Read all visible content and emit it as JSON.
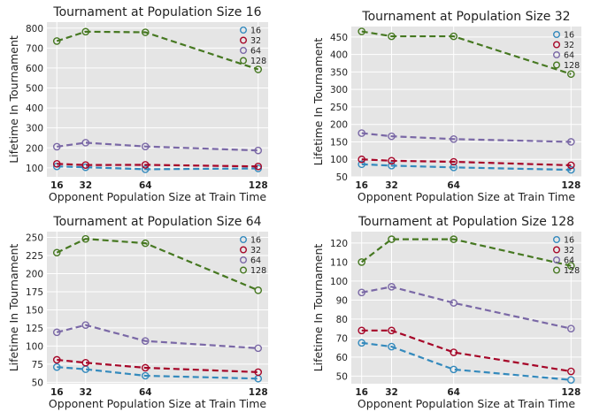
{
  "figure": {
    "series_colors": {
      "16": "#348abd",
      "32": "#a60628",
      "64": "#7a68a6",
      "128": "#467821"
    }
  },
  "chart_data": [
    {
      "type": "line",
      "title": "Tournament at Population Size 16",
      "xlabel": "Opponent Population Size at Train Time",
      "ylabel": "Lifetime In Tournament",
      "x": [
        16,
        32,
        64,
        128
      ],
      "xticks": [
        "16",
        "32",
        "64",
        "128"
      ],
      "yticks": [
        100,
        200,
        300,
        400,
        500,
        600,
        700,
        800
      ],
      "ylim": [
        55,
        830
      ],
      "grid": true,
      "legend_position": "top-right",
      "series": [
        {
          "name": "16",
          "values": [
            107,
            103,
            93,
            97
          ]
        },
        {
          "name": "32",
          "values": [
            120,
            114,
            115,
            107
          ]
        },
        {
          "name": "64",
          "values": [
            206,
            226,
            207,
            187
          ]
        },
        {
          "name": "128",
          "values": [
            735,
            782,
            779,
            593
          ]
        }
      ]
    },
    {
      "type": "line",
      "title": "Tournament at Population Size 32",
      "xlabel": "Opponent Population Size at Train Time",
      "ylabel": "Lifetime In Tournament",
      "x": [
        16,
        32,
        64,
        128
      ],
      "xticks": [
        "16",
        "32",
        "64",
        "128"
      ],
      "yticks": [
        50,
        100,
        150,
        200,
        250,
        300,
        350,
        400,
        450
      ],
      "ylim": [
        50,
        480
      ],
      "grid": true,
      "legend_position": "top-right",
      "series": [
        {
          "name": "16",
          "values": [
            86,
            82,
            77,
            70
          ]
        },
        {
          "name": "32",
          "values": [
            100,
            96,
            93,
            83
          ]
        },
        {
          "name": "64",
          "values": [
            175,
            166,
            158,
            150
          ]
        },
        {
          "name": "128",
          "values": [
            466,
            452,
            452,
            344
          ]
        }
      ]
    },
    {
      "type": "line",
      "title": "Tournament at Population Size 64",
      "xlabel": "Opponent Population Size at Train Time",
      "ylabel": "Lifetime In Tournament",
      "x": [
        16,
        32,
        64,
        128
      ],
      "xticks": [
        "16",
        "32",
        "64",
        "128"
      ],
      "yticks": [
        50,
        75,
        100,
        125,
        150,
        175,
        200,
        225,
        250
      ],
      "ylim": [
        48,
        258
      ],
      "grid": true,
      "legend_position": "top-right",
      "series": [
        {
          "name": "16",
          "values": [
            71,
            68,
            59,
            55
          ]
        },
        {
          "name": "32",
          "values": [
            81,
            77,
            70,
            64
          ]
        },
        {
          "name": "64",
          "values": [
            119,
            129,
            107,
            97
          ]
        },
        {
          "name": "128",
          "values": [
            229,
            248,
            242,
            177
          ]
        }
      ]
    },
    {
      "type": "line",
      "title": "Tournament at Population Size 128",
      "xlabel": "Opponent Population Size at Train Time",
      "ylabel": "Lifetime In Tournament",
      "x": [
        16,
        32,
        64,
        128
      ],
      "xticks": [
        "16",
        "32",
        "64",
        "128"
      ],
      "yticks": [
        50,
        60,
        70,
        80,
        90,
        100,
        110,
        120
      ],
      "ylim": [
        46,
        126
      ],
      "grid": true,
      "legend_position": "top-right",
      "series": [
        {
          "name": "16",
          "values": [
            67.5,
            65.5,
            53.5,
            48
          ]
        },
        {
          "name": "32",
          "values": [
            74,
            74,
            62.5,
            52.5
          ]
        },
        {
          "name": "64",
          "values": [
            94,
            97,
            88.5,
            75
          ]
        },
        {
          "name": "128",
          "values": [
            110,
            122,
            122,
            108
          ]
        }
      ]
    }
  ]
}
